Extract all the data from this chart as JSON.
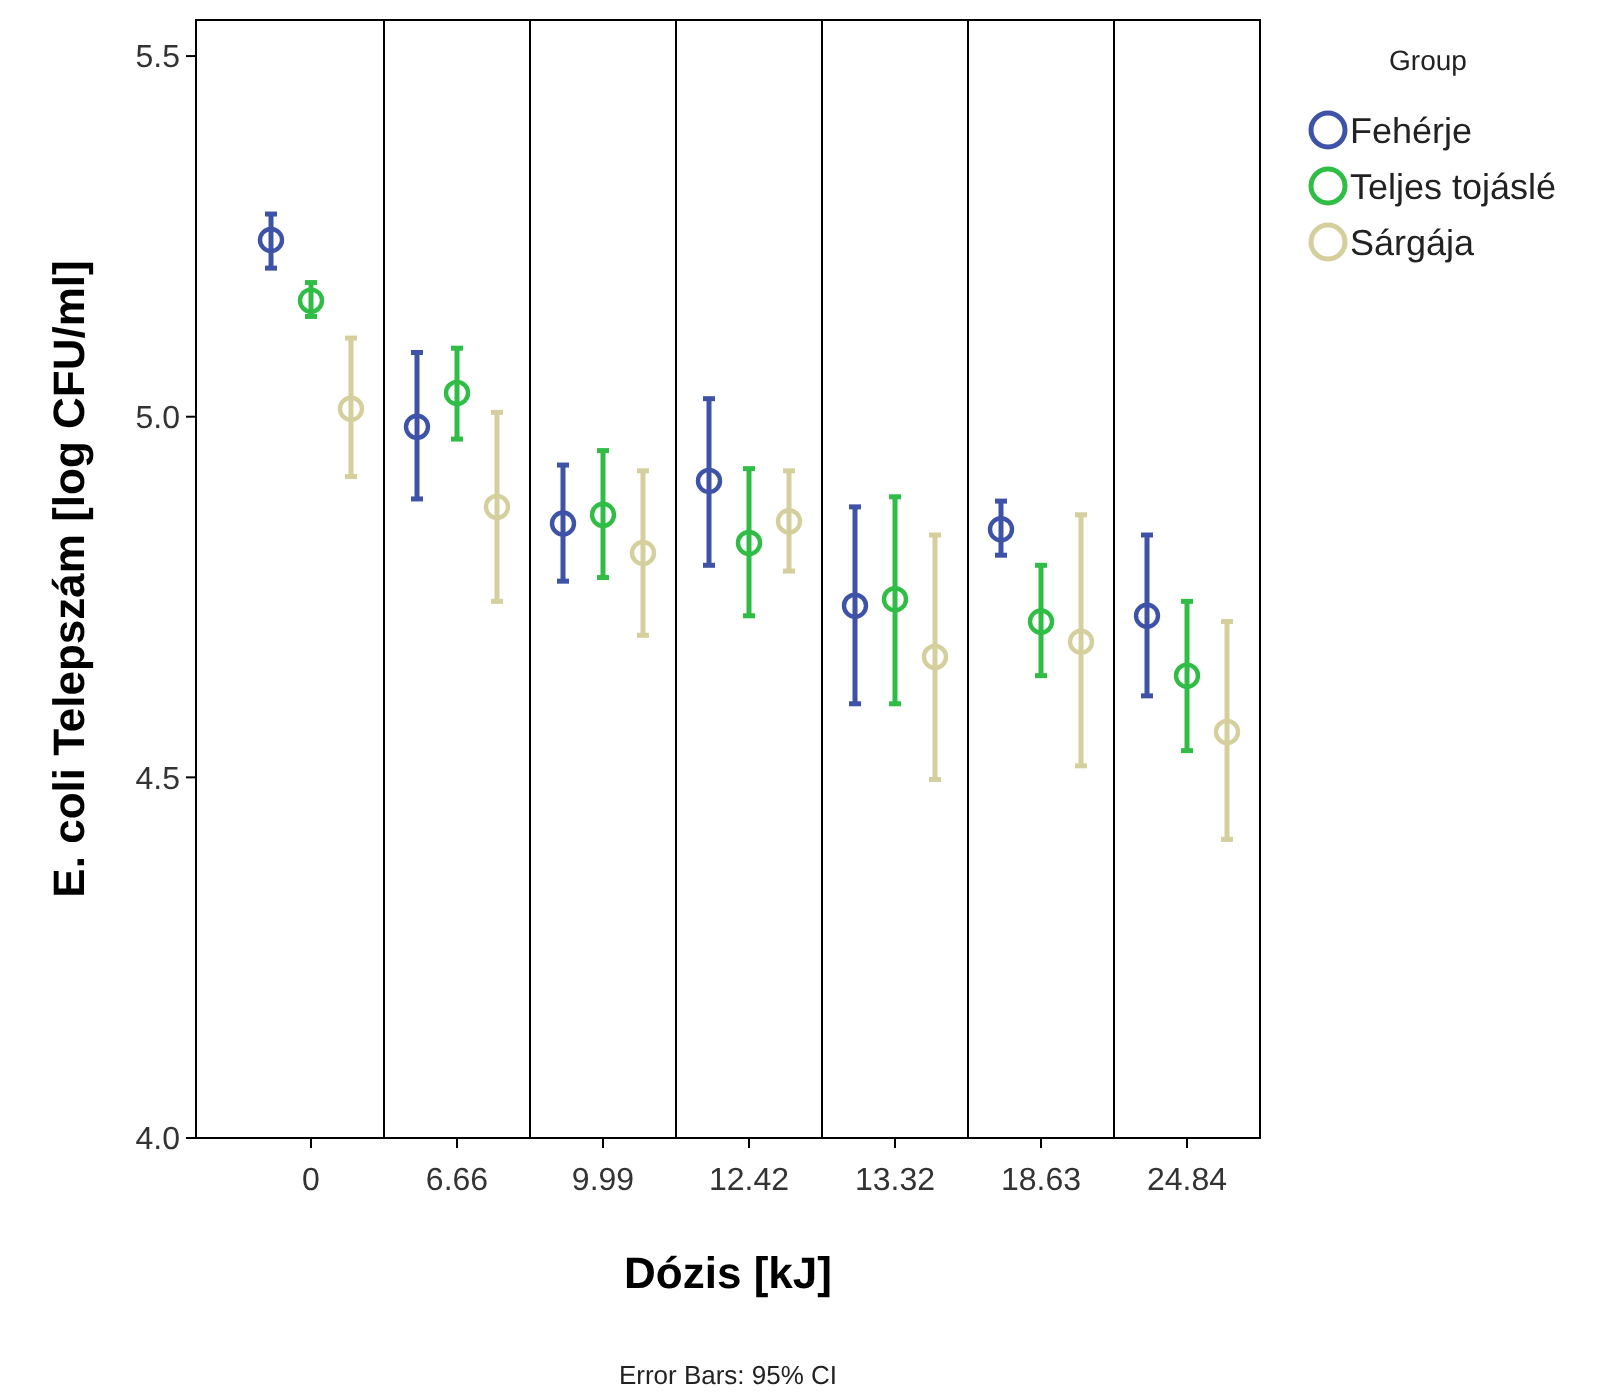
{
  "chart_data": {
    "type": "scatter",
    "xlabel": "Dózis [kJ]",
    "ylabel": "E. coli Telepszám [log CFU/ml]",
    "legend_title": "Group",
    "legend": "top right",
    "marker": "circle",
    "categories": [
      "0",
      "6.66",
      "9.99",
      "12.42",
      "13.32",
      "18.63",
      "24.84"
    ],
    "ylim": [
      4.0,
      5.55
    ],
    "yticks": [
      {
        "value": 4,
        "label": "4.0"
      },
      {
        "value": 4.5,
        "label": "4.5"
      },
      {
        "value": 5,
        "label": "5.0"
      },
      {
        "value": 5.5,
        "label": "5.5"
      }
    ],
    "series": [
      {
        "name": "Fehérje",
        "color": "#3e53a8",
        "values": [
          5.245,
          4.986,
          4.852,
          4.911,
          4.738,
          4.844,
          4.724
        ],
        "errors": [
          [
            5.206,
            5.281
          ],
          [
            4.886,
            5.089
          ],
          [
            4.772,
            4.933
          ],
          [
            4.794,
            5.025
          ],
          [
            4.602,
            4.875
          ],
          [
            4.808,
            4.883
          ],
          [
            4.613,
            4.836
          ]
        ]
      },
      {
        "name": "Teljes tojáslé",
        "color": "#2fbd45",
        "values": [
          5.161,
          5.033,
          4.864,
          4.825,
          4.747,
          4.716,
          4.641
        ],
        "errors": [
          [
            5.139,
            5.186
          ],
          [
            4.969,
            5.095
          ],
          [
            4.777,
            4.953
          ],
          [
            4.724,
            4.928
          ],
          [
            4.602,
            4.889
          ],
          [
            4.641,
            4.794
          ],
          [
            4.537,
            4.744
          ]
        ]
      },
      {
        "name": "Sárgája",
        "color": "#d4cf9c",
        "values": [
          5.011,
          4.875,
          4.811,
          4.855,
          4.667,
          4.688,
          4.563
        ],
        "errors": [
          [
            4.917,
            5.109
          ],
          [
            4.744,
            5.006
          ],
          [
            4.697,
            4.925
          ],
          [
            4.786,
            4.925
          ],
          [
            4.497,
            4.836
          ],
          [
            4.516,
            4.864
          ],
          [
            4.414,
            4.716
          ]
        ]
      }
    ],
    "annotations": [
      "Error Bars: 95% CI"
    ]
  }
}
